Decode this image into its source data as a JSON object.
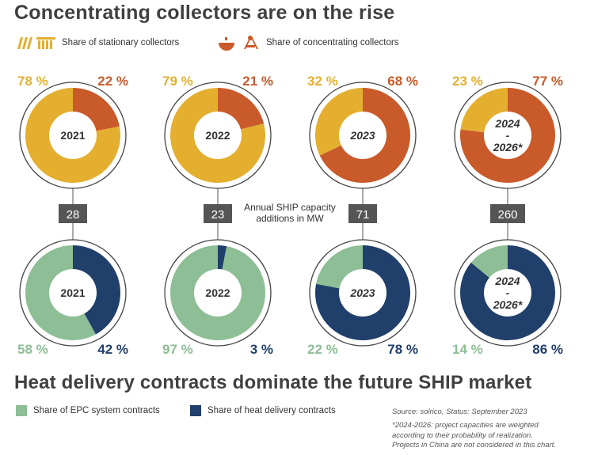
{
  "title_top": "Concentrating collectors are on the rise",
  "title_bottom": "Heat delivery contracts dominate the future SHIP market",
  "legend_top": {
    "stationary_label": "Share of stationary collectors",
    "concentrating_label": "Share of concentrating collectors"
  },
  "legend_bottom": {
    "epc_label": "Share of EPC system contracts",
    "heat_label": "Share of heat delivery contracts"
  },
  "annotation": "Annual SHIP capacity additions in MW",
  "annotation_lines": [
    "Annual SHIP capacity",
    "additions in MW"
  ],
  "source": "Source: solrico, Status: September 2023",
  "footnote_lines": [
    "*2024-2026: project capacities are weighted",
    "according to their probability of realization.",
    "Projects in China are not considered in this chart."
  ],
  "colors": {
    "stationary": "#E4AF2F",
    "concentrating": "#C95A2A",
    "epc": "#8DBE95",
    "heat": "#213F6B",
    "label_box": "#555555"
  },
  "chart_data": [
    {
      "type": "pie",
      "title": "Concentrating collectors are on the rise",
      "categories": [
        "2021",
        "2022",
        "2023",
        "2024-2026*"
      ],
      "series": [
        {
          "name": "Share of stationary collectors",
          "values": [
            78,
            79,
            32,
            23
          ],
          "labels": [
            "78 %",
            "79 %",
            "32 %",
            "23 %"
          ]
        },
        {
          "name": "Share of concentrating collectors",
          "values": [
            22,
            21,
            68,
            77
          ],
          "labels": [
            "22 %",
            "21 %",
            "68 %",
            "77 %"
          ]
        }
      ]
    },
    {
      "type": "table",
      "title": "Annual SHIP capacity additions in MW",
      "categories": [
        "2021",
        "2022",
        "2023",
        "2024-2026*"
      ],
      "values": [
        28,
        23,
        71,
        260
      ]
    },
    {
      "type": "pie",
      "title": "Heat delivery contracts dominate the future SHIP market",
      "categories": [
        "2021",
        "2022",
        "2023",
        "2024-2026*"
      ],
      "series": [
        {
          "name": "Share of EPC system contracts",
          "values": [
            58,
            97,
            22,
            14
          ],
          "labels": [
            "58 %",
            "97 %",
            "22 %",
            "14 %"
          ]
        },
        {
          "name": "Share of heat delivery contracts",
          "values": [
            42,
            3,
            78,
            86
          ],
          "labels": [
            "42 %",
            "3 %",
            "78 %",
            "86 %"
          ]
        }
      ]
    }
  ],
  "center_labels": [
    {
      "lines": [
        "2021"
      ],
      "italic": false
    },
    {
      "lines": [
        "2022"
      ],
      "italic": false
    },
    {
      "lines": [
        "2023"
      ],
      "italic": true
    },
    {
      "lines": [
        "2024",
        "-",
        "2026*"
      ],
      "italic": true
    }
  ]
}
